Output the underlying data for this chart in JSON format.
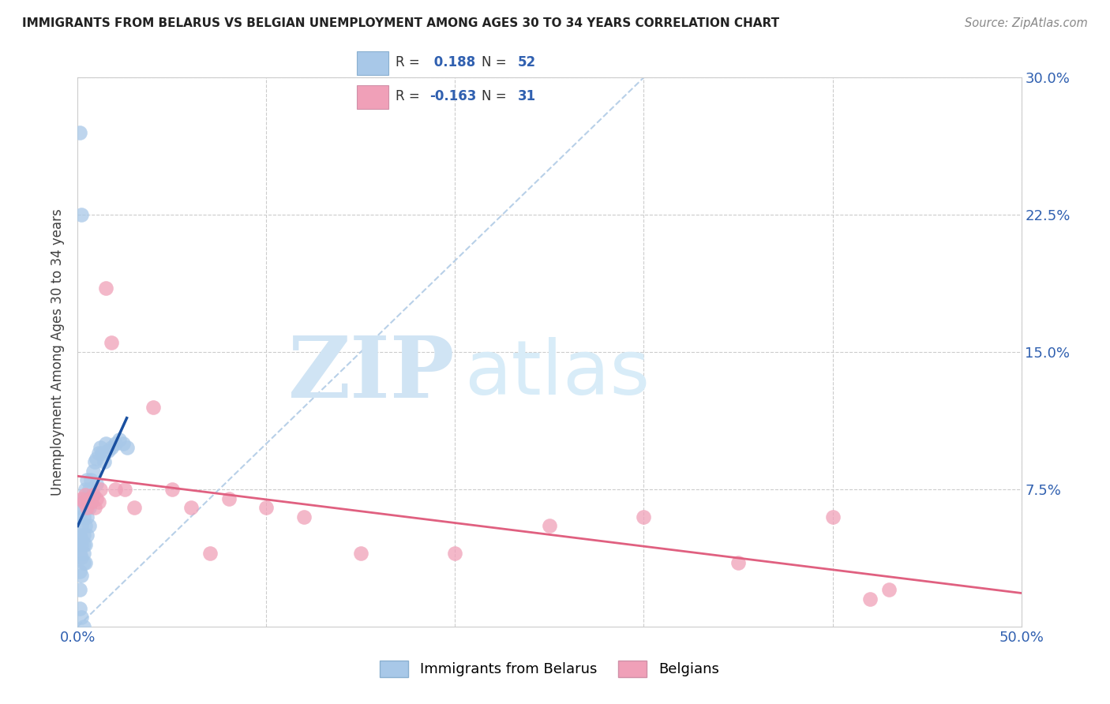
{
  "title": "IMMIGRANTS FROM BELARUS VS BELGIAN UNEMPLOYMENT AMONG AGES 30 TO 34 YEARS CORRELATION CHART",
  "source": "Source: ZipAtlas.com",
  "ylabel": "Unemployment Among Ages 30 to 34 years",
  "xlim": [
    0.0,
    0.5
  ],
  "ylim": [
    0.0,
    0.3
  ],
  "blue_R": 0.188,
  "blue_N": 52,
  "pink_R": -0.163,
  "pink_N": 31,
  "blue_color": "#a8c8e8",
  "pink_color": "#f0a0b8",
  "blue_line_color": "#1a50a0",
  "pink_line_color": "#e06080",
  "diag_color": "#b8d0e8",
  "blue_x": [
    0.001,
    0.001,
    0.001,
    0.001,
    0.001,
    0.001,
    0.002,
    0.002,
    0.002,
    0.002,
    0.002,
    0.002,
    0.002,
    0.003,
    0.003,
    0.003,
    0.003,
    0.003,
    0.003,
    0.004,
    0.004,
    0.004,
    0.004,
    0.004,
    0.005,
    0.005,
    0.005,
    0.005,
    0.006,
    0.006,
    0.006,
    0.007,
    0.007,
    0.008,
    0.008,
    0.009,
    0.01,
    0.01,
    0.011,
    0.012,
    0.013,
    0.014,
    0.015,
    0.016,
    0.018,
    0.02,
    0.022,
    0.024,
    0.026,
    0.001,
    0.002,
    0.003
  ],
  "blue_y": [
    0.05,
    0.04,
    0.06,
    0.03,
    0.02,
    0.01,
    0.055,
    0.045,
    0.065,
    0.038,
    0.028,
    0.048,
    0.005,
    0.05,
    0.06,
    0.04,
    0.035,
    0.07,
    0.045,
    0.055,
    0.065,
    0.045,
    0.075,
    0.035,
    0.06,
    0.07,
    0.05,
    0.08,
    0.065,
    0.075,
    0.055,
    0.08,
    0.068,
    0.085,
    0.072,
    0.09,
    0.092,
    0.078,
    0.095,
    0.098,
    0.095,
    0.09,
    0.1,
    0.096,
    0.098,
    0.1,
    0.102,
    0.1,
    0.098,
    0.27,
    0.225,
    0.0
  ],
  "pink_x": [
    0.002,
    0.003,
    0.004,
    0.005,
    0.006,
    0.007,
    0.008,
    0.009,
    0.01,
    0.011,
    0.012,
    0.015,
    0.018,
    0.02,
    0.025,
    0.03,
    0.04,
    0.05,
    0.06,
    0.07,
    0.08,
    0.1,
    0.12,
    0.15,
    0.2,
    0.25,
    0.3,
    0.35,
    0.4,
    0.42,
    0.43
  ],
  "pink_y": [
    0.07,
    0.068,
    0.072,
    0.065,
    0.07,
    0.068,
    0.072,
    0.065,
    0.07,
    0.068,
    0.075,
    0.185,
    0.155,
    0.075,
    0.075,
    0.065,
    0.12,
    0.075,
    0.065,
    0.04,
    0.07,
    0.065,
    0.06,
    0.04,
    0.04,
    0.055,
    0.06,
    0.035,
    0.06,
    0.015,
    0.02
  ]
}
